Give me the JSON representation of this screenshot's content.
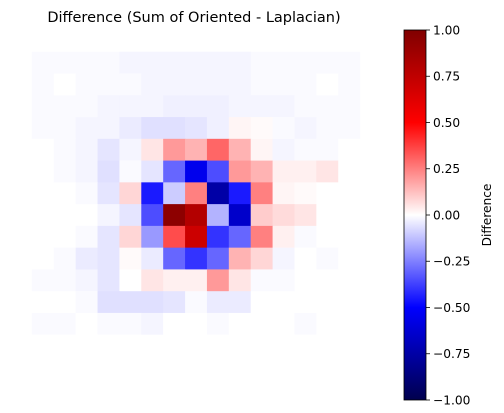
{
  "chart_data": {
    "type": "heatmap",
    "title": "Difference (Sum of Oriented - Laplacian)",
    "axes_visible": false,
    "colormap": "seismic",
    "vmin": -1.0,
    "vmax": 1.0,
    "colorbar": {
      "label": "Difference",
      "ticks": [
        1.0,
        0.75,
        0.5,
        0.25,
        0.0,
        -0.25,
        -0.5,
        -0.75,
        -1.0
      ],
      "tick_labels": [
        "1.00",
        "0.75",
        "0.50",
        "0.25",
        "0.00",
        "−0.25",
        "−0.50",
        "−0.75",
        "−1.00"
      ]
    },
    "grid": [
      [
        0,
        0,
        0,
        0,
        0,
        0,
        0,
        0,
        0,
        0,
        0,
        0,
        0,
        0,
        0,
        0,
        0
      ],
      [
        0,
        -0.01,
        -0.01,
        -0.01,
        -0.01,
        -0.02,
        -0.02,
        -0.02,
        -0.02,
        -0.02,
        -0.02,
        -0.01,
        -0.01,
        -0.01,
        -0.01,
        -0.01,
        0
      ],
      [
        0,
        -0.01,
        0,
        -0.01,
        -0.01,
        -0.01,
        -0.02,
        -0.02,
        -0.02,
        -0.02,
        -0.02,
        -0.01,
        -0.01,
        -0.01,
        0,
        -0.01,
        0
      ],
      [
        0,
        -0.01,
        -0.01,
        -0.01,
        -0.02,
        -0.02,
        -0.02,
        -0.03,
        -0.03,
        -0.03,
        -0.02,
        -0.02,
        -0.02,
        -0.01,
        -0.01,
        -0.01,
        0
      ],
      [
        0,
        -0.01,
        -0.01,
        -0.02,
        -0.02,
        -0.04,
        -0.06,
        -0.06,
        -0.05,
        -0.03,
        0.02,
        0.01,
        -0.01,
        -0.02,
        -0.01,
        -0.01,
        0
      ],
      [
        0,
        0,
        -0.01,
        -0.02,
        -0.05,
        -0.02,
        0.05,
        0.2,
        0.15,
        0.3,
        0.15,
        0.02,
        -0.02,
        -0.01,
        -0.01,
        0,
        0
      ],
      [
        0,
        0,
        -0.01,
        -0.02,
        -0.06,
        -0.01,
        -0.05,
        -0.3,
        -0.55,
        -0.35,
        0.2,
        0.15,
        0.03,
        0.03,
        0.05,
        0,
        0
      ],
      [
        0,
        0,
        0,
        -0.01,
        -0.05,
        0.08,
        -0.45,
        -0.1,
        0.25,
        -0.75,
        -0.45,
        0.25,
        0.02,
        0.01,
        0,
        0,
        0
      ],
      [
        0,
        0,
        0,
        0,
        -0.02,
        -0.05,
        -0.35,
        0.95,
        0.8,
        -0.15,
        -0.65,
        0.1,
        0.07,
        0.05,
        0,
        0,
        0
      ],
      [
        0,
        0,
        0,
        -0.01,
        -0.05,
        0.08,
        -0.2,
        0.35,
        0.7,
        -0.4,
        -0.3,
        0.25,
        0.03,
        -0.01,
        0,
        0,
        0
      ],
      [
        0,
        0,
        -0.01,
        -0.04,
        -0.05,
        0.01,
        -0.04,
        -0.3,
        -0.4,
        -0.3,
        0.15,
        0.08,
        -0.02,
        0,
        -0.01,
        0,
        0
      ],
      [
        0,
        -0.01,
        -0.01,
        -0.02,
        -0.05,
        0,
        0.05,
        0.03,
        0.03,
        0.2,
        0.05,
        -0.01,
        -0.01,
        0,
        0,
        0,
        0
      ],
      [
        0,
        0,
        0,
        -0.01,
        -0.06,
        -0.06,
        -0.06,
        -0.05,
        -0.01,
        -0.04,
        -0.04,
        0,
        0,
        0,
        0,
        0,
        0
      ],
      [
        0,
        -0.01,
        -0.01,
        0,
        -0.01,
        -0.01,
        -0.02,
        0,
        0,
        -0.01,
        0,
        0,
        0,
        -0.01,
        0,
        0,
        0
      ],
      [
        0,
        0,
        0,
        0,
        0,
        0,
        0,
        0,
        0,
        0,
        0,
        0,
        0,
        0,
        0,
        0,
        0
      ],
      [
        0,
        0,
        0,
        0,
        0,
        0,
        0,
        0,
        0,
        0,
        0,
        0,
        0,
        0,
        0,
        0,
        0
      ],
      [
        0,
        0,
        0,
        0,
        0,
        0,
        0,
        0,
        0,
        0,
        0,
        0,
        0,
        0,
        0,
        0,
        0
      ]
    ]
  }
}
